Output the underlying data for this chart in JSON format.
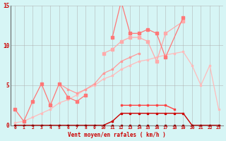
{
  "xlabel": "Vent moyen/en rafales ( km/h )",
  "x_values": [
    0,
    1,
    2,
    3,
    4,
    5,
    6,
    7,
    8,
    9,
    10,
    11,
    12,
    13,
    14,
    15,
    16,
    17,
    18,
    19,
    20,
    21,
    22,
    23
  ],
  "line_spiky": [
    null,
    null,
    null,
    null,
    null,
    null,
    null,
    null,
    null,
    null,
    null,
    11.0,
    15.5,
    11.5,
    11.5,
    12.0,
    11.5,
    8.5,
    null,
    13.5,
    null,
    null,
    null,
    null
  ],
  "line_diag": [
    null,
    null,
    null,
    null,
    null,
    null,
    null,
    null,
    null,
    null,
    9.0,
    9.5,
    10.5,
    11.0,
    11.0,
    10.5,
    8.0,
    11.5,
    null,
    13.0,
    null,
    null,
    null,
    null
  ],
  "line_broad1": [
    null,
    null,
    null,
    null,
    null,
    5.2,
    4.5,
    4.0,
    4.5,
    5.2,
    6.5,
    7.0,
    8.0,
    8.5,
    9.0,
    null,
    null,
    null,
    null,
    null,
    null,
    null,
    null,
    null
  ],
  "line_cluster": [
    2.0,
    0.5,
    3.0,
    5.2,
    2.5,
    5.2,
    3.5,
    3.0,
    3.8,
    null,
    null,
    null,
    null,
    null,
    null,
    null,
    null,
    null,
    null,
    null,
    null,
    null,
    null,
    null
  ],
  "line_broad2": [
    0.3,
    0.5,
    1.0,
    1.5,
    2.0,
    2.8,
    3.2,
    3.8,
    4.5,
    5.0,
    5.8,
    6.2,
    7.0,
    7.5,
    8.0,
    8.2,
    8.5,
    8.8,
    9.0,
    9.2,
    7.5,
    5.0,
    7.5,
    2.0
  ],
  "line_mid": [
    null,
    null,
    null,
    null,
    null,
    null,
    null,
    null,
    null,
    null,
    null,
    null,
    2.5,
    2.5,
    2.5,
    2.5,
    2.5,
    2.5,
    2.0,
    null,
    null,
    null,
    null,
    null
  ],
  "line_lower": [
    0.0,
    0.0,
    0.0,
    0.0,
    0.0,
    0.0,
    0.0,
    0.0,
    0.0,
    0.0,
    0.0,
    0.5,
    1.5,
    1.5,
    1.5,
    1.5,
    1.5,
    1.5,
    1.5,
    1.5,
    0.0,
    0.0,
    0.0,
    0.0
  ],
  "line_bottom": [
    0.0,
    0.0,
    0.0,
    0.0,
    0.0,
    0.0,
    0.0,
    0.0,
    0.0,
    0.0,
    0.0,
    0.0,
    0.0,
    0.0,
    0.0,
    0.0,
    0.0,
    0.0,
    0.0,
    0.0,
    0.0,
    0.0,
    0.0,
    0.0
  ],
  "ylim": [
    0,
    15
  ],
  "yticks": [
    0,
    5,
    10,
    15
  ],
  "bg_color": "#d6f5f5",
  "grid_color": "#aaaaaa",
  "c_spiky": "#ff7777",
  "c_diag": "#ffaaaa",
  "c_broad1": "#ff9999",
  "c_cluster": "#ff7777",
  "c_broad2": "#ffbbbb",
  "c_mid": "#ff4444",
  "c_lower": "#cc0000",
  "c_bottom": "#880000"
}
